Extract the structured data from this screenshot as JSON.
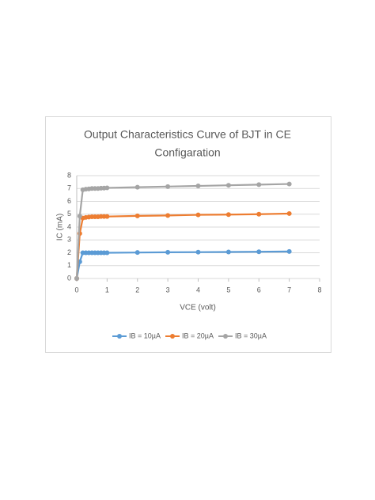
{
  "chart_data": {
    "type": "line",
    "title": [
      "Output Characteristics Curve of BJT in CE",
      "Configaration"
    ],
    "x_label": "VCE (volt)",
    "y_label": "IC (mA)",
    "x": [
      0,
      0.1,
      0.2,
      0.3,
      0.4,
      0.5,
      0.6,
      0.7,
      0.8,
      0.9,
      1,
      2,
      3,
      4,
      5,
      6,
      7
    ],
    "series": [
      {
        "name": "IB = 10µA",
        "color": "#5b9bd5",
        "values": [
          0,
          1.3,
          2.0,
          2.0,
          2.0,
          2.0,
          2.0,
          2.0,
          2.0,
          2.0,
          2.0,
          2.02,
          2.04,
          2.05,
          2.06,
          2.08,
          2.1
        ]
      },
      {
        "name": "IB = 20µA",
        "color": "#ed7d31",
        "values": [
          0,
          3.5,
          4.7,
          4.75,
          4.78,
          4.8,
          4.8,
          4.8,
          4.82,
          4.82,
          4.82,
          4.87,
          4.9,
          4.95,
          4.97,
          5.0,
          5.05
        ]
      },
      {
        "name": "IB = 30µA",
        "color": "#a5a5a5",
        "values": [
          0,
          4.85,
          6.9,
          6.95,
          6.97,
          7.0,
          7.0,
          7.0,
          7.02,
          7.03,
          7.05,
          7.1,
          7.15,
          7.2,
          7.25,
          7.3,
          7.35
        ]
      }
    ],
    "xlim": [
      0,
      8
    ],
    "xticks": [
      0,
      1,
      2,
      3,
      4,
      5,
      6,
      7,
      8
    ],
    "ylim": [
      0,
      8
    ],
    "yticks": [
      0,
      1,
      2,
      3,
      4,
      5,
      6,
      7,
      8
    ],
    "grid": true,
    "legend": "bottom"
  }
}
